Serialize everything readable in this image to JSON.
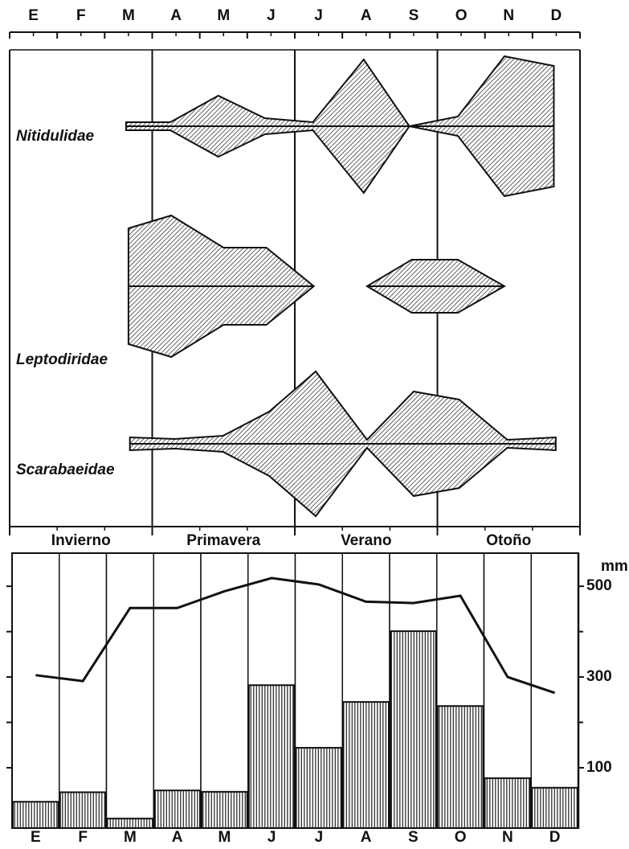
{
  "chart_data": [
    {
      "type": "kite",
      "months": [
        "E",
        "F",
        "M",
        "A",
        "M",
        "J",
        "J",
        "A",
        "S",
        "O",
        "N",
        "D"
      ],
      "xlim": [
        0,
        12
      ],
      "season_lines": [
        3,
        6,
        9
      ],
      "seasons": [
        "Invierno",
        "Primavera",
        "Verano",
        "Otoño"
      ],
      "series": [
        {
          "name": "Nitidulidae",
          "x": [
            2.45,
            3.38,
            4.39,
            5.37,
            6.38,
            7.45,
            8.41,
            9.43,
            10.41,
            11.45
          ],
          "values": [
            5,
            5,
            38,
            10,
            5,
            83,
            0,
            12,
            87,
            75
          ]
        },
        {
          "name": "Leptodiridae",
          "x": [
            2.5,
            3.4,
            4.5,
            5.4,
            6.4,
            null,
            7.52,
            8.46,
            9.43,
            10.41
          ],
          "values": [
            72,
            88,
            48,
            48,
            0,
            null,
            0,
            33,
            33,
            0
          ]
        },
        {
          "name": "Scarabaeidae",
          "x": [
            2.53,
            3.48,
            4.49,
            5.46,
            6.44,
            7.52,
            8.5,
            9.46,
            10.47,
            11.49
          ],
          "values": [
            8,
            6,
            10,
            40,
            90,
            5,
            65,
            55,
            5,
            8
          ]
        }
      ]
    },
    {
      "type": "bar_line",
      "categories": [
        "E",
        "F",
        "M",
        "A",
        "M",
        "J",
        "J",
        "A",
        "S",
        "O",
        "N",
        "D"
      ],
      "bars": {
        "values": [
          25,
          46,
          -12,
          50,
          47,
          282,
          144,
          245,
          401,
          236,
          77,
          56
        ]
      },
      "line": {
        "values": [
          304,
          291,
          452,
          452,
          489,
          518,
          504,
          466,
          463,
          479,
          300,
          265
        ]
      },
      "y_label": "mm",
      "ylim": [
        -33,
        573
      ],
      "yticks": [
        100,
        300,
        500
      ],
      "minor_yticks": [
        200,
        400
      ]
    }
  ]
}
